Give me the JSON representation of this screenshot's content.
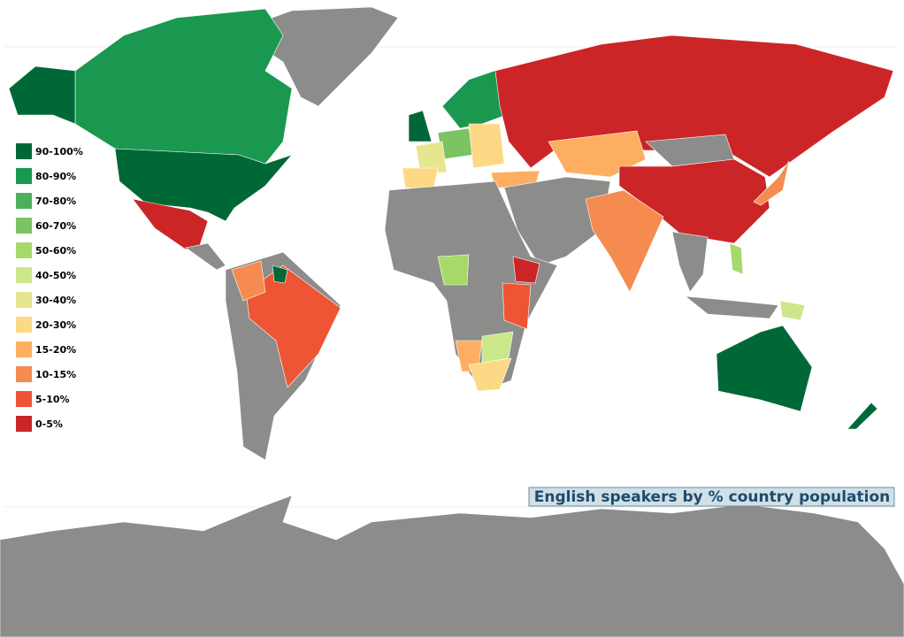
{
  "title": "English speakers by % country population",
  "legend": [
    {
      "label": "90-100%",
      "color": "#006837"
    },
    {
      "label": "80-90%",
      "color": "#1a9850"
    },
    {
      "label": "70-80%",
      "color": "#4daf5a"
    },
    {
      "label": "60-70%",
      "color": "#7cc363"
    },
    {
      "label": "50-60%",
      "color": "#a6d96a"
    },
    {
      "label": "40-50%",
      "color": "#cbe78a"
    },
    {
      "label": "30-40%",
      "color": "#e6e590"
    },
    {
      "label": "20-30%",
      "color": "#fdd985"
    },
    {
      "label": "15-20%",
      "color": "#fdae61"
    },
    {
      "label": "10-15%",
      "color": "#f68b4f"
    },
    {
      "label": "5-10%",
      "color": "#ee5535"
    },
    {
      "label": "0-5%",
      "color": "#cc2527"
    }
  ]
}
